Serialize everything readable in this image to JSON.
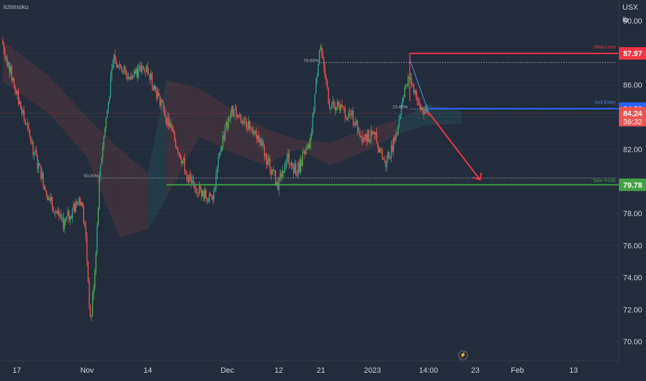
{
  "indicator": "Ichimoku",
  "currency": "USX",
  "unit": "lb",
  "colors": {
    "background": "#232c3b",
    "up_candle": "#26a69a",
    "up_candle_bright": "#4caf50",
    "down_candle": "#ef5350",
    "stop_loss": "#f23645",
    "take_profit": "#43a047",
    "sell_entry": "#2962ff",
    "axis_text": "#d1d4dc"
  },
  "chart_data": {
    "type": "candlestick",
    "ylim": [
      68.8,
      91.3
    ],
    "y_ticks": [
      "90.00",
      "88.00",
      "86.00",
      "84.00",
      "82.00",
      "80.00",
      "78.00",
      "76.00",
      "74.00",
      "72.00",
      "70.00"
    ],
    "x_ticks": [
      "17",
      "Nov",
      "14",
      "Dec",
      "12",
      "21",
      "2023",
      "14:00",
      "23",
      "Feb",
      "13"
    ],
    "price_path": [
      {
        "x": "Oct 14",
        "y": 88.8
      },
      {
        "x": "Oct 18",
        "y": 84.6
      },
      {
        "x": "Oct 24",
        "y": 79.0
      },
      {
        "x": "Oct 27",
        "y": 77.3
      },
      {
        "x": "Oct 31",
        "y": 78.9
      },
      {
        "x": "Nov 1",
        "y": 76.4
      },
      {
        "x": "Nov 2",
        "y": 71.0
      },
      {
        "x": "Nov 3",
        "y": 74.9
      },
      {
        "x": "Nov 4",
        "y": 80.8
      },
      {
        "x": "Nov 7",
        "y": 87.8
      },
      {
        "x": "Nov 10",
        "y": 86.5
      },
      {
        "x": "Nov 14",
        "y": 87.1
      },
      {
        "x": "Nov 17",
        "y": 84.9
      },
      {
        "x": "Nov 21",
        "y": 81.8
      },
      {
        "x": "Nov 23",
        "y": 80.1
      },
      {
        "x": "Nov 28",
        "y": 78.7
      },
      {
        "x": "Nov 30",
        "y": 82.4
      },
      {
        "x": "Dec 2",
        "y": 84.4
      },
      {
        "x": "Dec 7",
        "y": 83.3
      },
      {
        "x": "Dec 12",
        "y": 79.8
      },
      {
        "x": "Dec 14",
        "y": 81.6
      },
      {
        "x": "Dec 16",
        "y": 80.6
      },
      {
        "x": "Dec 19",
        "y": 82.4
      },
      {
        "x": "Dec 21",
        "y": 88.6
      },
      {
        "x": "Dec 23",
        "y": 84.9
      },
      {
        "x": "Dec 28",
        "y": 84.0
      },
      {
        "x": "Dec 30",
        "y": 82.8
      },
      {
        "x": "Jan 2",
        "y": 82.8
      },
      {
        "x": "Jan 4",
        "y": 81.0
      },
      {
        "x": "Jan 6",
        "y": 82.6
      },
      {
        "x": "Jan 9",
        "y": 86.8
      },
      {
        "x": "Jan 11",
        "y": 85.0
      },
      {
        "x": "Jan 13",
        "y": 84.2
      }
    ],
    "levels": {
      "stop_loss": {
        "label": "Stop Loss",
        "value": "87.97"
      },
      "sell_entry": {
        "label": "Sell Entry",
        "value": "84.53"
      },
      "take_profit": {
        "label": "Take Profit",
        "value": "79.78"
      }
    },
    "current_price": {
      "value": "84.24",
      "countdown": "36:32"
    },
    "fib_levels": [
      {
        "label": "78.60%",
        "value": 87.4
      },
      {
        "label": "50.00%",
        "value": 80.2
      },
      {
        "label": "23.60%",
        "value": 84.5
      }
    ],
    "projection": {
      "from": {
        "x": "Jan 13",
        "y": 84.3
      },
      "to": {
        "x": "Jan 24",
        "y": 80.1
      }
    },
    "cloud": [
      {
        "x": "Oct 14",
        "a": 88.8,
        "b": 86.2
      },
      {
        "x": "Oct 24",
        "a": 86.5,
        "b": 84.2
      },
      {
        "x": "Nov 1",
        "a": 84.0,
        "b": 81.5
      },
      {
        "x": "Nov 8",
        "a": 82.0,
        "b": 76.5
      },
      {
        "x": "Nov 14",
        "a": 80.5,
        "b": 77.0
      },
      {
        "x": "Nov 18",
        "a": 86.3,
        "b": 79.0
      },
      {
        "x": "Nov 25",
        "a": 85.8,
        "b": 82.8
      },
      {
        "x": "Dec 2",
        "a": 84.5,
        "b": 81.8
      },
      {
        "x": "Dec 9",
        "a": 83.3,
        "b": 81.0
      },
      {
        "x": "Dec 16",
        "a": 82.6,
        "b": 82.0
      },
      {
        "x": "Dec 23",
        "a": 82.4,
        "b": 81.0
      },
      {
        "x": "Dec 30",
        "a": 83.2,
        "b": 81.8
      },
      {
        "x": "Jan 6",
        "a": 83.8,
        "b": 82.9
      },
      {
        "x": "Jan 13",
        "a": 84.8,
        "b": 83.5
      },
      {
        "x": "Jan 20",
        "a": 84.4,
        "b": 83.6
      }
    ]
  }
}
